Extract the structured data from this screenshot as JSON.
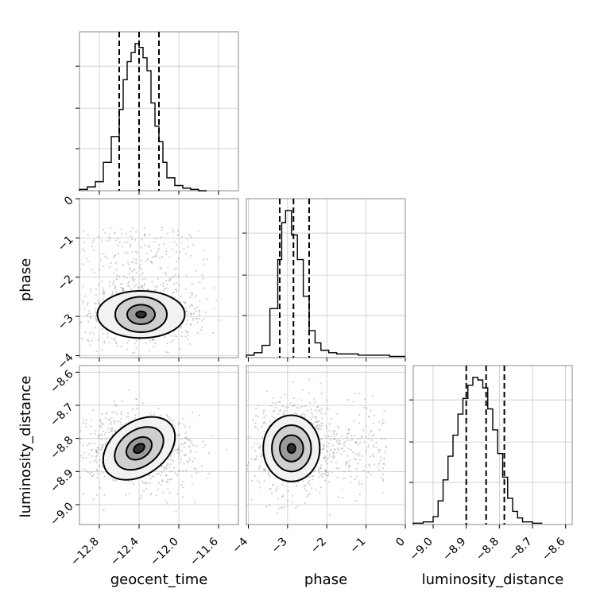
{
  "chart_data": {
    "type": "corner",
    "parameters": [
      {
        "name": "geocent_time",
        "label": "geocent_time",
        "ticks": [
          -12.8,
          -12.4,
          -12.0,
          -11.6
        ],
        "tick_labels": [
          "−12.8",
          "−12.4",
          "−12.0",
          "−11.6"
        ],
        "range": [
          -13.0,
          -11.4
        ]
      },
      {
        "name": "phase",
        "label": "phase",
        "ticks": [
          -4,
          -3,
          -2,
          -1,
          0
        ],
        "tick_labels": [
          "−4",
          "−3",
          "−2",
          "−1",
          "0"
        ],
        "range": [
          -4.05,
          0.0
        ]
      },
      {
        "name": "luminosity_distance",
        "label": "luminosity_distance",
        "ticks": [
          -9.0,
          -8.9,
          -8.8,
          -8.7,
          -8.6
        ],
        "tick_labels": [
          "−9.0",
          "−8.9",
          "−8.8",
          "−8.7",
          "−8.6"
        ],
        "range": [
          -9.06,
          -8.58
        ]
      }
    ],
    "row_tick_labels": {
      "phase": [
        "0",
        "−1",
        "−2",
        "−3",
        "−4"
      ],
      "luminosity_distance": [
        "−8.6",
        "−8.7",
        "−8.8",
        "−8.9",
        "−9.0"
      ]
    },
    "histograms": {
      "geocent_time": {
        "bin_edges": [
          -13.0,
          -12.92,
          -12.84,
          -12.76,
          -12.68,
          -12.6,
          -12.56,
          -12.52,
          -12.48,
          -12.44,
          -12.4,
          -12.36,
          -12.32,
          -12.28,
          -12.24,
          -12.2,
          -12.16,
          -12.12,
          -12.04,
          -11.96,
          -11.88,
          -11.8,
          -11.72
        ],
        "counts": [
          1,
          3,
          7,
          22,
          42,
          63,
          86,
          100,
          107,
          114,
          111,
          103,
          93,
          68,
          50,
          38,
          22,
          10,
          4,
          2,
          1,
          0
        ],
        "quantiles": [
          -12.6,
          -12.4,
          -12.2
        ]
      },
      "phase": {
        "bin_edges": [
          -4.05,
          -3.85,
          -3.65,
          -3.45,
          -3.25,
          -3.15,
          -3.05,
          -2.9,
          -2.75,
          -2.6,
          -2.45,
          -2.3,
          -2.15,
          -1.95,
          -1.75,
          -1.5,
          -1.2,
          -0.8,
          -0.4,
          0.0
        ],
        "counts": [
          2,
          4,
          10,
          40,
          80,
          110,
          120,
          100,
          80,
          50,
          22,
          12,
          6,
          4,
          3,
          3,
          2,
          2,
          1
        ],
        "quantiles": [
          -3.2,
          -2.85,
          -2.45
        ]
      },
      "luminosity_distance": {
        "bin_edges": [
          -9.06,
          -9.03,
          -9.0,
          -8.985,
          -8.97,
          -8.955,
          -8.94,
          -8.925,
          -8.91,
          -8.895,
          -8.88,
          -8.865,
          -8.85,
          -8.835,
          -8.82,
          -8.805,
          -8.79,
          -8.775,
          -8.76,
          -8.745,
          -8.73,
          -8.7,
          -8.67
        ],
        "counts": [
          1,
          2,
          6,
          18,
          34,
          52,
          68,
          84,
          96,
          106,
          112,
          110,
          104,
          88,
          72,
          54,
          36,
          20,
          10,
          5,
          2,
          1
        ],
        "quantiles": [
          -8.9,
          -8.84,
          -8.785
        ]
      }
    },
    "pairs": [
      {
        "x": "geocent_time",
        "y": "phase",
        "center": [
          -12.38,
          -2.95
        ],
        "contours": [
          {
            "rx": 0.05,
            "ry": 0.08
          },
          {
            "rx": 0.14,
            "ry": 0.25
          },
          {
            "rx": 0.26,
            "ry": 0.45
          },
          {
            "rx": 0.44,
            "ry": 0.6
          }
        ],
        "peak_label": "−3"
      },
      {
        "x": "geocent_time",
        "y": "luminosity_distance",
        "center": [
          -12.4,
          -8.83
        ],
        "contours": [
          {
            "rx": 0.06,
            "ry": 0.012
          },
          {
            "rx": 0.14,
            "ry": 0.03
          },
          {
            "rx": 0.27,
            "ry": 0.055
          },
          {
            "rx": 0.4,
            "ry": 0.08
          }
        ]
      },
      {
        "x": "phase",
        "y": "luminosity_distance",
        "center": [
          -2.9,
          -8.83
        ],
        "contours": [
          {
            "rx": 0.1,
            "ry": 0.014
          },
          {
            "rx": 0.3,
            "ry": 0.04
          },
          {
            "rx": 0.5,
            "ry": 0.07
          },
          {
            "rx": 0.72,
            "ry": 0.1
          }
        ]
      }
    ],
    "grid": true
  }
}
